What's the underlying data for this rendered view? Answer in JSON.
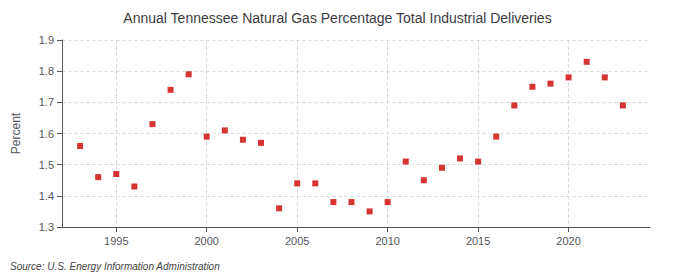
{
  "chart_data": {
    "type": "scatter",
    "title": "Annual Tennessee Natural Gas Percentage Total Industrial Deliveries",
    "ylabel": "Percent",
    "annotations": [
      "Source: U.S. Energy Information Administration"
    ],
    "color": "#cc0000",
    "marker": "square",
    "grid": true,
    "xlim": [
      1992.0,
      2024.5
    ],
    "xticks": [
      1995,
      2000,
      2005,
      2010,
      2015,
      2020
    ],
    "ylim": [
      1.3,
      1.9
    ],
    "yticks": [
      1.3,
      1.4,
      1.5,
      1.6,
      1.7,
      1.8,
      1.9
    ],
    "x": [
      1993,
      1994,
      1995,
      1996,
      1997,
      1998,
      1999,
      2000,
      2001,
      2002,
      2003,
      2004,
      2005,
      2006,
      2007,
      2008,
      2009,
      2010,
      2011,
      2012,
      2013,
      2014,
      2015,
      2016,
      2017,
      2018,
      2019,
      2020,
      2021,
      2022,
      2023
    ],
    "values": [
      1.56,
      1.46,
      1.47,
      1.43,
      1.63,
      1.74,
      1.79,
      1.59,
      1.61,
      1.58,
      1.57,
      1.36,
      1.44,
      1.44,
      1.38,
      1.38,
      1.35,
      1.38,
      1.51,
      1.45,
      1.49,
      1.52,
      1.51,
      1.59,
      1.69,
      1.75,
      1.76,
      1.78,
      1.83,
      1.78,
      1.69
    ]
  }
}
